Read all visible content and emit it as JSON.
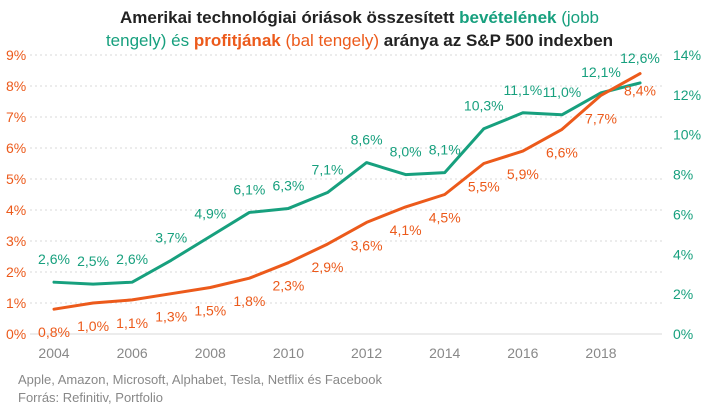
{
  "title": {
    "part1": "Amerikai technológiai óriások összesített ",
    "revenue_word": "bevételének",
    "part2": " (jobb",
    "part3": "tengely) és ",
    "profit_word": "profitjának",
    "part4": " (bal tengely)",
    "part5": " aránya az S&P 500 indexben"
  },
  "footer": {
    "companies": "Apple, Amazon, Microsoft, Alphabet, Tesla, Netflix és Facebook",
    "source": "Forrás: Refinitiv, Portfolio"
  },
  "colors": {
    "revenue": "#17a07e",
    "profit": "#ec5a1b",
    "axis_text": "#888888",
    "grid": "#d9d9d9"
  },
  "chart_data": {
    "type": "line",
    "x": [
      2004,
      2005,
      2006,
      2007,
      2008,
      2009,
      2010,
      2011,
      2012,
      2013,
      2014,
      2015,
      2016,
      2017,
      2018,
      2019
    ],
    "x_ticks": [
      "2004",
      "2006",
      "2008",
      "2010",
      "2012",
      "2014",
      "2016",
      "2018"
    ],
    "left_axis": {
      "ylim": [
        0,
        9
      ],
      "ticks": [
        "0%",
        "1%",
        "2%",
        "3%",
        "4%",
        "5%",
        "6%",
        "7%",
        "8%",
        "9%"
      ]
    },
    "right_axis": {
      "ylim": [
        0,
        14
      ],
      "ticks": [
        "0%",
        "2%",
        "4%",
        "6%",
        "8%",
        "10%",
        "12%",
        "14%"
      ]
    },
    "grid": true,
    "series": [
      {
        "key": "revenue",
        "axis": "right",
        "values": [
          2.6,
          2.5,
          2.6,
          3.7,
          4.9,
          6.1,
          6.3,
          7.1,
          8.6,
          8.0,
          8.1,
          10.3,
          11.1,
          11.0,
          12.1,
          12.6
        ],
        "labels": [
          "2,6%",
          "2,5%",
          "2,6%",
          "3,7%",
          "4,9%",
          "6,1%",
          "6,3%",
          "7,1%",
          "8,6%",
          "8,0%",
          "8,1%",
          "10,3%",
          "11,1%",
          "11,0%",
          "12,1%",
          "12,6%"
        ]
      },
      {
        "key": "profit",
        "axis": "left",
        "values": [
          0.8,
          1.0,
          1.1,
          1.3,
          1.5,
          1.8,
          2.3,
          2.9,
          3.6,
          4.1,
          4.5,
          5.5,
          5.9,
          6.6,
          7.7,
          8.4
        ],
        "labels": [
          "0,8%",
          "1,0%",
          "1,1%",
          "1,3%",
          "1,5%",
          "1,8%",
          "2,3%",
          "2,9%",
          "3,6%",
          "4,1%",
          "4,5%",
          "5,5%",
          "5,9%",
          "6,6%",
          "7,7%",
          "8,4%"
        ]
      }
    ]
  }
}
